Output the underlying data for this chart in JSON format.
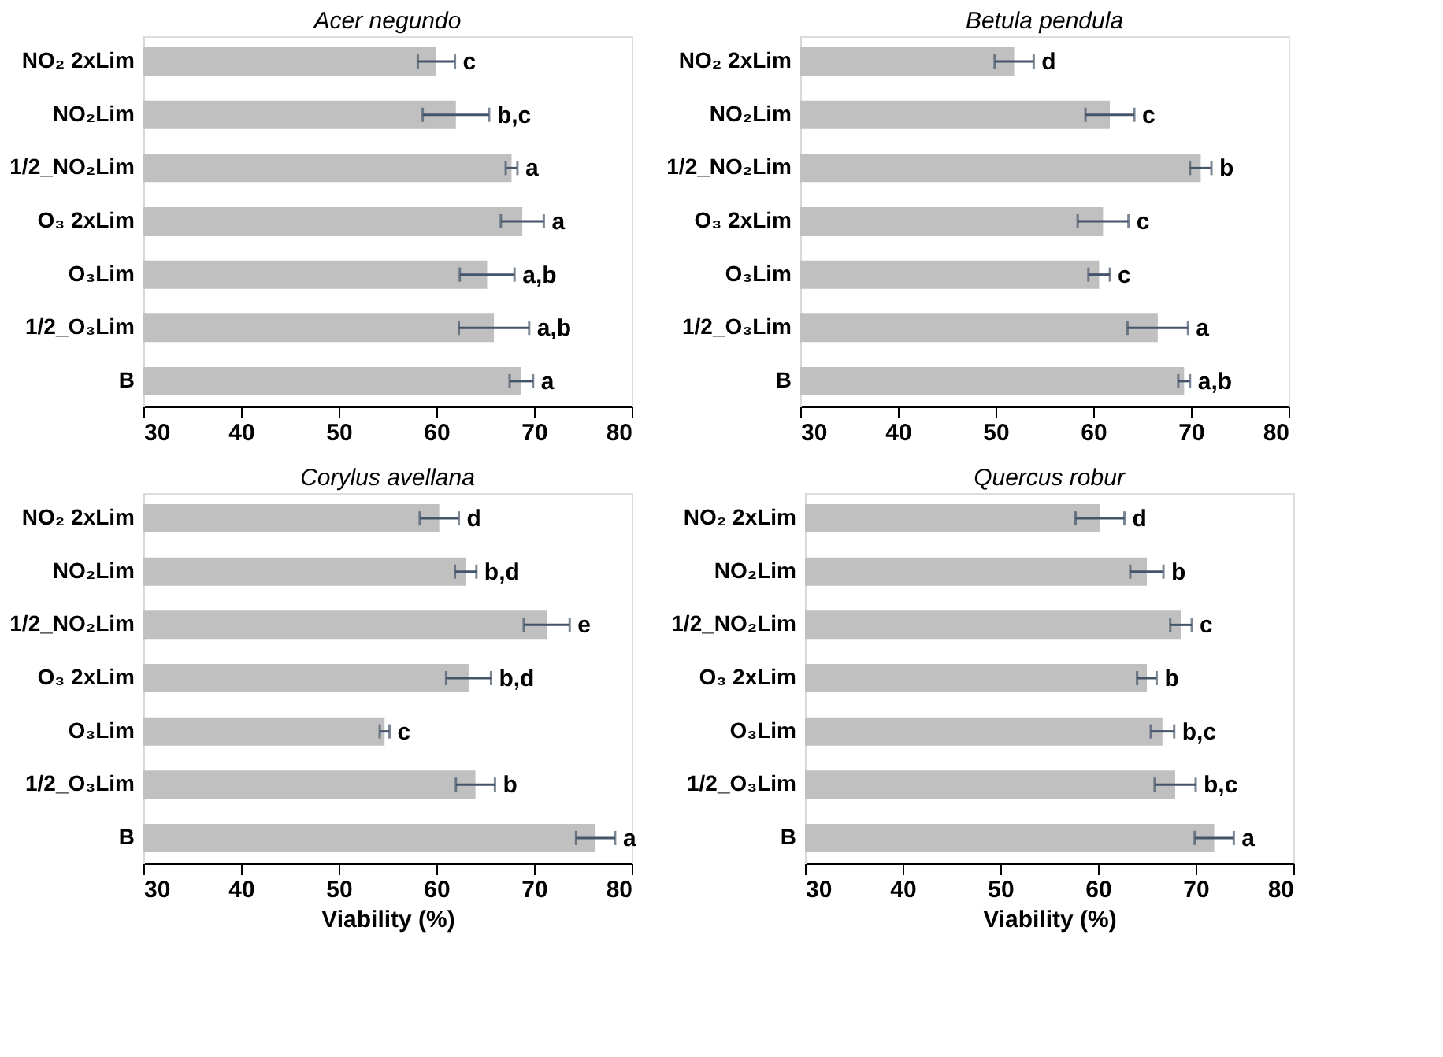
{
  "chart_data": [
    {
      "type": "bar",
      "orientation": "horizontal",
      "title": "Acer negundo",
      "categories": [
        "NO₂ 2xLim",
        "NO₂Lim",
        "1/2_NO₂Lim",
        "O₃ 2xLim",
        "O₃Lim",
        "1/2_O₃Lim",
        "B"
      ],
      "series": [
        {
          "color": "#c0c0c0",
          "values": [
            60.0,
            62.0,
            67.7,
            68.8,
            65.2,
            65.9,
            68.7
          ],
          "errors": [
            1.9,
            3.4,
            0.6,
            2.2,
            2.8,
            3.6,
            1.2
          ]
        }
      ],
      "xlim": [
        30,
        80
      ],
      "xticks": [
        30,
        40,
        50,
        60,
        70,
        80
      ],
      "grid": false,
      "annotations": [
        {
          "text": "c",
          "x": 61.9,
          "y": "NO₂ 2xLim"
        },
        {
          "text": "b,c",
          "x": 65.4,
          "y": "NO₂Lim"
        },
        {
          "text": "a",
          "x": 68.3,
          "y": "1/2_NO₂Lim"
        },
        {
          "text": "a",
          "x": 71.0,
          "y": "O₃ 2xLim"
        },
        {
          "text": "a,b",
          "x": 68.0,
          "y": "O₃Lim"
        },
        {
          "text": "a,b",
          "x": 69.5,
          "y": "1/2_O₃Lim"
        },
        {
          "text": "a",
          "x": 69.9,
          "y": "B"
        }
      ]
    },
    {
      "type": "bar",
      "orientation": "horizontal",
      "title": "Betula pendula",
      "categories": [
        "NO₂ 2xLim",
        "NO₂Lim",
        "1/2_NO₂Lim",
        "O₃ 2xLim",
        "O₃Lim",
        "1/2_O₃Lim",
        "B"
      ],
      "series": [
        {
          "color": "#c0c0c0",
          "values": [
            51.9,
            61.7,
            71.0,
            61.0,
            60.6,
            66.6,
            69.3
          ],
          "errors": [
            2.0,
            2.5,
            1.1,
            2.6,
            1.1,
            3.1,
            0.6
          ]
        }
      ],
      "xlim": [
        30,
        80
      ],
      "xticks": [
        30,
        40,
        50,
        60,
        70,
        80
      ],
      "grid": false,
      "annotations": [
        {
          "text": "d",
          "x": 53.9,
          "y": "NO₂ 2xLim"
        },
        {
          "text": "c",
          "x": 64.2,
          "y": "NO₂Lim"
        },
        {
          "text": "b",
          "x": 72.1,
          "y": "1/2_NO₂Lim"
        },
        {
          "text": "c",
          "x": 63.6,
          "y": "O₃ 2xLim"
        },
        {
          "text": "c",
          "x": 61.7,
          "y": "O₃Lim"
        },
        {
          "text": "a",
          "x": 69.7,
          "y": "1/2_O₃Lim"
        },
        {
          "text": "a,b",
          "x": 69.9,
          "y": "B"
        }
      ]
    },
    {
      "type": "bar",
      "orientation": "horizontal",
      "title": "Corylus avellana",
      "xlabel": "Viability (%)",
      "categories": [
        "NO₂ 2xLim",
        "NO₂Lim",
        "1/2_NO₂Lim",
        "O₃ 2xLim",
        "O₃Lim",
        "1/2_O₃Lim",
        "B"
      ],
      "series": [
        {
          "color": "#c0c0c0",
          "values": [
            60.3,
            63.0,
            71.3,
            63.3,
            54.7,
            64.0,
            76.3
          ],
          "errors": [
            2.0,
            1.1,
            2.35,
            2.3,
            0.5,
            2.0,
            2.0
          ]
        }
      ],
      "xlim": [
        30,
        80
      ],
      "xticks": [
        30,
        40,
        50,
        60,
        70,
        80
      ],
      "grid": false,
      "annotations": [
        {
          "text": "d",
          "x": 62.3,
          "y": "NO₂ 2xLim"
        },
        {
          "text": "b,d",
          "x": 64.1,
          "y": "NO₂Lim"
        },
        {
          "text": "e",
          "x": 73.65,
          "y": "1/2_NO₂Lim"
        },
        {
          "text": "b,d",
          "x": 65.6,
          "y": "O₃ 2xLim"
        },
        {
          "text": "c",
          "x": 55.2,
          "y": "O₃Lim"
        },
        {
          "text": "b",
          "x": 66.0,
          "y": "1/2_O₃Lim"
        },
        {
          "text": "a",
          "x": 78.3,
          "y": "B"
        }
      ]
    },
    {
      "type": "bar",
      "orientation": "horizontal",
      "title": "Quercus robur",
      "xlabel": "Viability (%)",
      "categories": [
        "NO₂ 2xLim",
        "NO₂Lim",
        "1/2_NO₂Lim",
        "O₃ 2xLim",
        "O₃Lim",
        "1/2_O₃Lim",
        "B"
      ],
      "series": [
        {
          "color": "#c0c0c0",
          "values": [
            60.2,
            65.0,
            68.5,
            65.0,
            66.6,
            67.9,
            71.9
          ],
          "errors": [
            2.5,
            1.7,
            1.1,
            1.0,
            1.2,
            2.1,
            2.0
          ]
        }
      ],
      "xlim": [
        30,
        80
      ],
      "xticks": [
        30,
        40,
        50,
        60,
        70,
        80
      ],
      "grid": false,
      "annotations": [
        {
          "text": "d",
          "x": 62.7,
          "y": "NO₂ 2xLim"
        },
        {
          "text": "b",
          "x": 66.7,
          "y": "NO₂Lim"
        },
        {
          "text": "c",
          "x": 69.6,
          "y": "1/2_NO₂Lim"
        },
        {
          "text": "b",
          "x": 66.0,
          "y": "O₃ 2xLim"
        },
        {
          "text": "b,c",
          "x": 67.8,
          "y": "O₃Lim"
        },
        {
          "text": "b,c",
          "x": 70.0,
          "y": "1/2_O₃Lim"
        },
        {
          "text": "a",
          "x": 73.9,
          "y": "B"
        }
      ]
    }
  ]
}
